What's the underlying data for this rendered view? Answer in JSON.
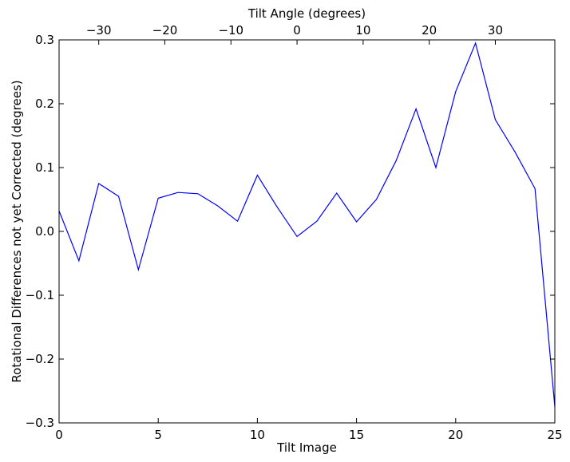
{
  "chart_data": {
    "type": "line",
    "xlabel": "Tilt Image",
    "ylabel": "Rotational Differences not yet Corrected (degrees)",
    "top_xlabel": "Tilt Angle (degrees)",
    "xlim": [
      0,
      25
    ],
    "ylim": [
      -0.3,
      0.3
    ],
    "x_ticks": [
      0,
      5,
      10,
      15,
      20,
      25
    ],
    "x_tick_labels": [
      "0",
      "5",
      "10",
      "15",
      "20",
      "25"
    ],
    "y_ticks": [
      -0.3,
      -0.2,
      -0.1,
      0.0,
      0.1,
      0.2,
      0.3
    ],
    "y_tick_labels": [
      "−0.3",
      "−0.2",
      "−0.1",
      "0.0",
      "0.1",
      "0.2",
      "0.3"
    ],
    "top_axis": {
      "unit": "degrees",
      "ticks": [
        -30,
        -20,
        -10,
        0,
        10,
        20,
        30
      ],
      "tick_labels": [
        "−30",
        "−20",
        "−10",
        "0",
        "10",
        "20",
        "30"
      ],
      "angle_at_x0": -36.0,
      "degrees_per_tilt_image": 3.0
    },
    "grid": false,
    "line_color": "#0000ff",
    "series": [
      {
        "x": [
          0,
          1,
          2,
          3,
          4,
          5,
          6,
          7,
          8,
          9,
          10,
          11,
          12,
          13,
          14,
          15,
          16,
          17,
          18,
          19,
          20,
          21,
          22,
          23,
          24,
          25
        ],
        "values": [
          0.032,
          -0.046,
          0.075,
          0.055,
          -0.06,
          0.052,
          0.061,
          0.059,
          0.04,
          0.016,
          0.088,
          0.038,
          -0.008,
          0.016,
          0.06,
          0.015,
          0.05,
          0.111,
          0.192,
          0.1,
          0.219,
          0.295,
          0.175,
          0.124,
          0.067,
          -0.275
        ]
      }
    ]
  }
}
